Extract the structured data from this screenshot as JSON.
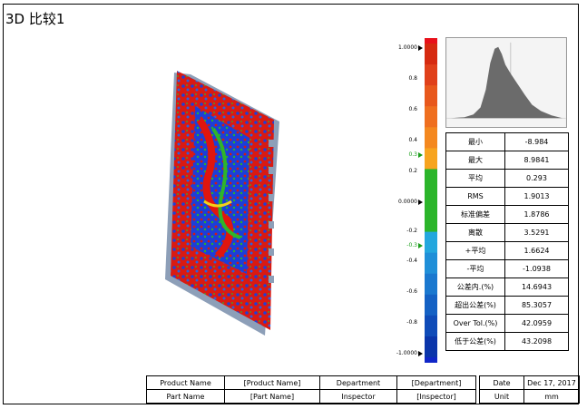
{
  "title": "3D 比较1",
  "colorbar": {
    "ticks": [
      {
        "label": "1.0000",
        "marker": true,
        "green": false
      },
      {
        "label": "0.8",
        "marker": false,
        "green": false
      },
      {
        "label": "0.6",
        "marker": false,
        "green": false
      },
      {
        "label": "0.4",
        "marker": false,
        "green": false
      },
      {
        "label": "0.3",
        "marker": true,
        "green": true
      },
      {
        "label": "0.2",
        "marker": false,
        "green": false
      },
      {
        "label": "0.0000",
        "marker": true,
        "green": false
      },
      {
        "label": "-0.2",
        "marker": false,
        "green": false
      },
      {
        "label": "-0.3",
        "marker": true,
        "green": true
      },
      {
        "label": "-0.4",
        "marker": false,
        "green": false
      },
      {
        "label": "-0.6",
        "marker": false,
        "green": false
      },
      {
        "label": "-0.8",
        "marker": false,
        "green": false
      },
      {
        "label": "-1.0000",
        "marker": true,
        "green": false
      }
    ]
  },
  "stats": [
    {
      "label": "最小",
      "value": "-8.984"
    },
    {
      "label": "最大",
      "value": "8.9841"
    },
    {
      "label": "平均",
      "value": "0.293"
    },
    {
      "label": "RMS",
      "value": "1.9013"
    },
    {
      "label": "标准偏差",
      "value": "1.8786"
    },
    {
      "label": "离散",
      "value": "3.5291"
    },
    {
      "label": "+平均",
      "value": "1.6624"
    },
    {
      "label": "-平均",
      "value": "-1.0938"
    },
    {
      "label": "公差内.(%)",
      "value": "14.6943"
    },
    {
      "label": "超出公差(%)",
      "value": "85.3057"
    },
    {
      "label": "Over Tol.(%)",
      "value": "42.0959"
    },
    {
      "label": "低于公差(%)",
      "value": "43.2098"
    }
  ],
  "footer": {
    "product_name_label": "Product Name",
    "product_name_value": "[Product Name]",
    "part_name_label": "Part Name",
    "part_name_value": "[Part Name]",
    "department_label": "Department",
    "department_value": "[Department]",
    "inspector_label": "Inspector",
    "inspector_value": "[Inspector]",
    "date_label": "Date",
    "date_value": "Dec 17, 2017",
    "unit_label": "Unit",
    "unit_value": "mm"
  }
}
